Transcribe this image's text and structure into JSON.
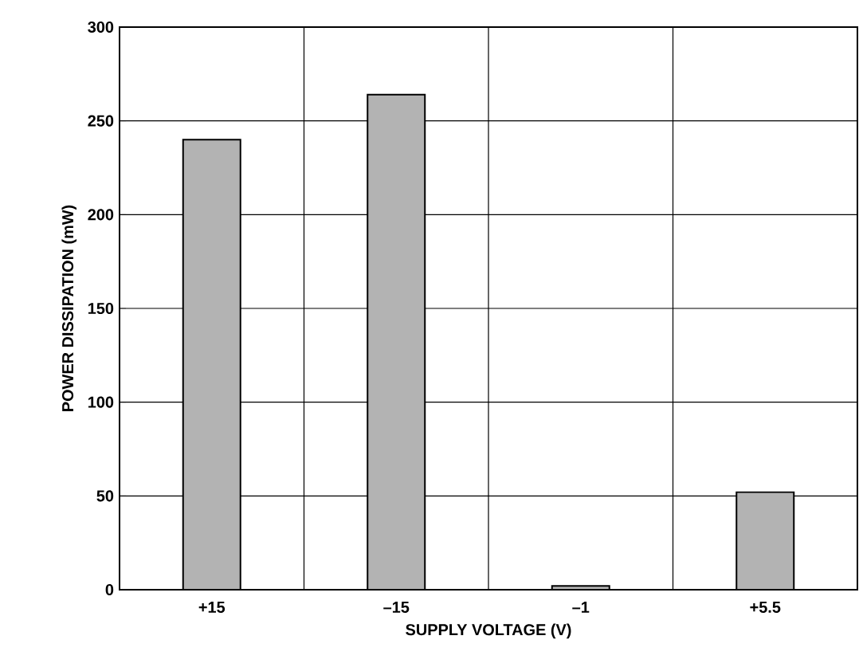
{
  "chart_data": {
    "type": "bar",
    "xlabel": "SUPPLY VOLTAGE (V)",
    "ylabel": "POWER DISSIPATION (mW)",
    "categories": [
      "+15",
      "–15",
      "–1",
      "+5.5"
    ],
    "values": [
      240,
      264,
      2,
      52
    ],
    "color": "#b3b3b3",
    "ylim": [
      0,
      300
    ],
    "yticks": [
      0,
      50,
      100,
      150,
      200,
      250,
      300
    ],
    "grid": true
  }
}
